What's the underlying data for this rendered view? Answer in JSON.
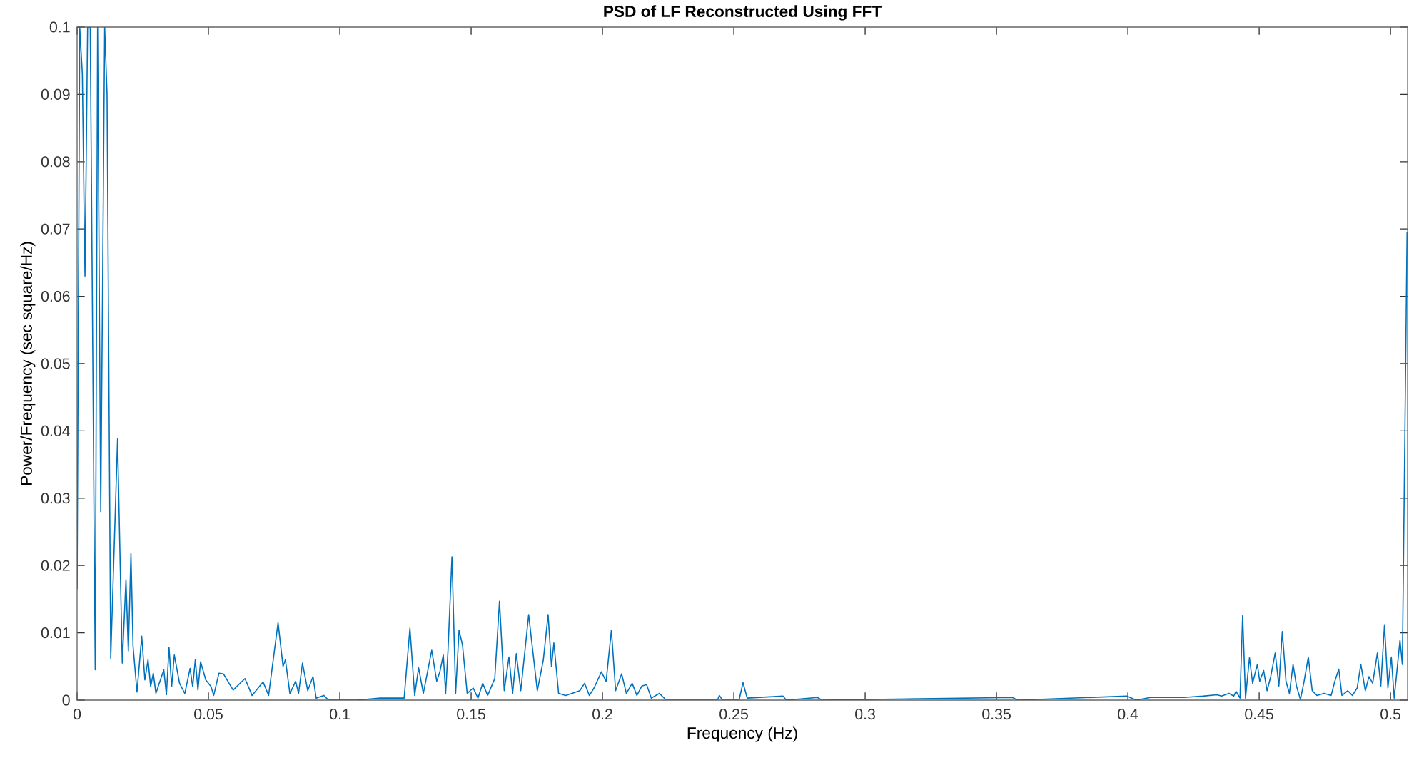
{
  "chart_data": {
    "type": "line",
    "title": "PSD of LF Reconstructed Using FFT",
    "xlabel": "Frequency (Hz)",
    "ylabel": "Power/Frequency (sec square/Hz)",
    "xlim": [
      0,
      0.5065
    ],
    "ylim": [
      0,
      0.1
    ],
    "xticks": [
      0,
      0.05,
      0.1,
      0.15,
      0.2,
      0.25,
      0.3,
      0.35,
      0.4,
      0.45,
      0.5
    ],
    "yticks": [
      0,
      0.01,
      0.02,
      0.03,
      0.04,
      0.05,
      0.06,
      0.07,
      0.08,
      0.09,
      0.1
    ],
    "grid": false,
    "marker": "none",
    "line_style": "solid",
    "series": [
      {
        "color": "#0072bd",
        "x": [
          0,
          0.001,
          0.002,
          0.003,
          0.004,
          0.005,
          0.0069,
          0.0078,
          0.009,
          0.0105,
          0.0114,
          0.0128,
          0.0154,
          0.0172,
          0.0186,
          0.0195,
          0.0205,
          0.0213,
          0.0228,
          0.0246,
          0.0258,
          0.027,
          0.028,
          0.029,
          0.03,
          0.033,
          0.034,
          0.035,
          0.036,
          0.037,
          0.039,
          0.041,
          0.043,
          0.044,
          0.045,
          0.046,
          0.047,
          0.049,
          0.051,
          0.052,
          0.054,
          0.0557,
          0.0594,
          0.0639,
          0.0666,
          0.0708,
          0.0729,
          0.0765,
          0.0784,
          0.0793,
          0.081,
          0.0832,
          0.0843,
          0.0858,
          0.0878,
          0.0898,
          0.091,
          0.0939,
          0.0957,
          0.1064,
          0.1154,
          0.1245,
          0.1267,
          0.1285,
          0.13,
          0.1318,
          0.135,
          0.1369,
          0.1381,
          0.1394,
          0.1403,
          0.1412,
          0.1427,
          0.1441,
          0.1454,
          0.1467,
          0.1485,
          0.1508,
          0.1526,
          0.1544,
          0.1563,
          0.159,
          0.1608,
          0.1626,
          0.1644,
          0.1658,
          0.1672,
          0.1689,
          0.1719,
          0.1752,
          0.1775,
          0.1793,
          0.1806,
          0.1815,
          0.1833,
          0.186,
          0.1914,
          0.1932,
          0.195,
          0.1968,
          0.1996,
          0.2014,
          0.2034,
          0.205,
          0.2073,
          0.2091,
          0.2113,
          0.2131,
          0.215,
          0.2168,
          0.2186,
          0.2217,
          0.224,
          0.2439,
          0.2445,
          0.2457,
          0.252,
          0.2535,
          0.2551,
          0.2687,
          0.27,
          0.2818,
          0.2836,
          0.3561,
          0.358,
          0.3996,
          0.4032,
          0.4086,
          0.4213,
          0.4285,
          0.4339,
          0.4357,
          0.4385,
          0.4403,
          0.4412,
          0.4427,
          0.4437,
          0.4448,
          0.4463,
          0.4475,
          0.4493,
          0.4502,
          0.4517,
          0.453,
          0.4544,
          0.4561,
          0.4575,
          0.4588,
          0.4602,
          0.4615,
          0.4629,
          0.4642,
          0.4657,
          0.4671,
          0.4687,
          0.4702,
          0.472,
          0.4747,
          0.4774,
          0.4788,
          0.4803,
          0.4815,
          0.4837,
          0.4855,
          0.4873,
          0.4887,
          0.4904,
          0.4918,
          0.4932,
          0.495,
          0.4963,
          0.4977,
          0.499,
          0.5003,
          0.5014,
          0.5036,
          0.5045,
          0.5063
        ],
        "values": [
          0.0165,
          0.1,
          0.093,
          0.063,
          0.1,
          0.1,
          0.0045,
          0.1,
          0.028,
          0.1,
          0.09,
          0.0062,
          0.0388,
          0.0055,
          0.0179,
          0.0073,
          0.0218,
          0.008,
          0.0012,
          0.0095,
          0.003,
          0.006,
          0.002,
          0.004,
          0.001,
          0.0045,
          0.0008,
          0.0078,
          0.002,
          0.0067,
          0.0025,
          0.001,
          0.0047,
          0.002,
          0.006,
          0.0015,
          0.0057,
          0.003,
          0.002,
          0.0007,
          0.004,
          0.0039,
          0.0015,
          0.0032,
          0.0007,
          0.0027,
          0.0007,
          0.0115,
          0.005,
          0.006,
          0.001,
          0.0028,
          0.001,
          0.0055,
          0.0014,
          0.0035,
          0.0003,
          0.0007,
          0,
          0,
          0.0003,
          0.0003,
          0.0107,
          0.0007,
          0.0048,
          0.001,
          0.0074,
          0.0028,
          0.0042,
          0.0067,
          0.001,
          0.0074,
          0.0213,
          0.001,
          0.0104,
          0.0082,
          0.001,
          0.0018,
          0.0003,
          0.0025,
          0.0007,
          0.0032,
          0.0147,
          0.0014,
          0.0064,
          0.001,
          0.0069,
          0.0014,
          0.0127,
          0.0014,
          0.006,
          0.0127,
          0.005,
          0.0085,
          0.001,
          0.0007,
          0.0014,
          0.0025,
          0.0007,
          0.0018,
          0.0042,
          0.0028,
          0.0104,
          0.0014,
          0.0039,
          0.001,
          0.0025,
          0.0007,
          0.0021,
          0.0023,
          0.0003,
          0.001,
          0.0001,
          0.0001,
          0.0007,
          0,
          0,
          0.0026,
          0.0003,
          0.0006,
          0,
          0.0004,
          0,
          0.0004,
          0,
          0.0006,
          0,
          0.0004,
          0.0004,
          0.0006,
          0.0008,
          0.0006,
          0.001,
          0.0006,
          0.0013,
          0.0003,
          0.0126,
          0.0003,
          0.0063,
          0.0025,
          0.0053,
          0.0028,
          0.0044,
          0.0014,
          0.0035,
          0.007,
          0.0021,
          0.0102,
          0.0028,
          0.001,
          0.0053,
          0.0021,
          0.0001,
          0.0028,
          0.0064,
          0.0014,
          0.0007,
          0.001,
          0.0007,
          0.0028,
          0.0046,
          0.0007,
          0.0014,
          0.0007,
          0.0018,
          0.0053,
          0.0014,
          0.0035,
          0.0025,
          0.007,
          0.0021,
          0.0112,
          0.0018,
          0.0064,
          0.0003,
          0.0089,
          0.0053,
          0.0695
        ]
      }
    ]
  }
}
